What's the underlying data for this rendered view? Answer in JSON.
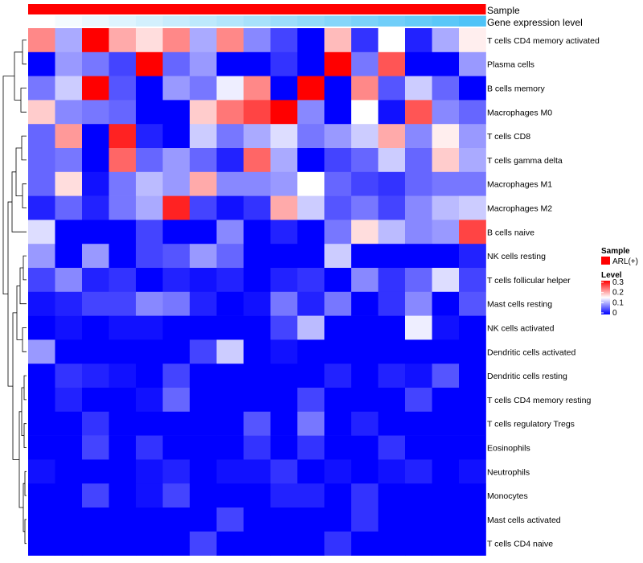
{
  "chart_data": {
    "type": "heatmap",
    "annotations": {
      "sample_label": "Sample",
      "expression_label": "Gene expression level",
      "sample_color": "#ff0000",
      "expression_gradient": [
        "#ffffff",
        "#4fc3f7"
      ]
    },
    "rows": [
      "T cells CD4 memory activated",
      "Plasma cells",
      "B cells memory",
      "Macrophages M0",
      "T cells CD8",
      "T cells gamma delta",
      "Macrophages M1",
      "Macrophages M2",
      "B cells naive",
      "NK cells resting",
      "T cells follicular helper",
      "Mast cells resting",
      "NK cells activated",
      "Dendritic cells activated",
      "Dendritic cells resting",
      "T cells CD4 memory resting",
      "T cells regulatory  Tregs",
      "Eosinophils",
      "Neutrophils",
      "Monocytes",
      "Mast cells activated",
      "T cells CD4 naive"
    ],
    "n_columns": 17,
    "values": [
      [
        0.22,
        0.1,
        0.3,
        0.2,
        0.17,
        0.22,
        0.1,
        0.22,
        0.08,
        0.04,
        0.0,
        0.19,
        0.03,
        0.15,
        0.02,
        0.1,
        0.16
      ],
      [
        0.0,
        0.09,
        0.07,
        0.04,
        0.3,
        0.06,
        0.09,
        0.0,
        0.0,
        0.03,
        0.0,
        0.3,
        0.07,
        0.25,
        0.0,
        0.0,
        0.09
      ],
      [
        0.07,
        0.12,
        0.3,
        0.05,
        0.0,
        0.09,
        0.07,
        0.14,
        0.22,
        0.0,
        0.3,
        0.0,
        0.22,
        0.05,
        0.12,
        0.06,
        0.0
      ],
      [
        0.18,
        0.08,
        0.07,
        0.06,
        0.0,
        0.0,
        0.18,
        0.23,
        0.26,
        0.3,
        0.08,
        0.0,
        0.15,
        0.01,
        0.25,
        0.08,
        0.06
      ],
      [
        0.06,
        0.21,
        0.0,
        0.28,
        0.02,
        0.0,
        0.12,
        0.07,
        0.1,
        0.13,
        0.07,
        0.09,
        0.12,
        0.2,
        0.08,
        0.16,
        0.09
      ],
      [
        0.06,
        0.07,
        0.0,
        0.24,
        0.06,
        0.09,
        0.06,
        0.02,
        0.24,
        0.1,
        0.0,
        0.04,
        0.06,
        0.12,
        0.06,
        0.18,
        0.1
      ],
      [
        0.06,
        0.17,
        0.01,
        0.07,
        0.11,
        0.09,
        0.2,
        0.08,
        0.08,
        0.09,
        0.15,
        0.06,
        0.04,
        0.03,
        0.06,
        0.07,
        0.07
      ],
      [
        0.02,
        0.06,
        0.02,
        0.07,
        0.1,
        0.28,
        0.04,
        0.01,
        0.03,
        0.2,
        0.12,
        0.05,
        0.07,
        0.04,
        0.08,
        0.11,
        0.12
      ],
      [
        0.13,
        0.0,
        0.0,
        0.0,
        0.04,
        0.0,
        0.0,
        0.08,
        0.0,
        0.02,
        0.0,
        0.07,
        0.17,
        0.11,
        0.08,
        0.09,
        0.26
      ],
      [
        0.09,
        0.0,
        0.09,
        0.0,
        0.04,
        0.05,
        0.09,
        0.06,
        0.0,
        0.0,
        0.0,
        0.12,
        0.0,
        0.0,
        0.0,
        0.0,
        0.02
      ],
      [
        0.04,
        0.08,
        0.02,
        0.03,
        0.0,
        0.02,
        0.01,
        0.02,
        0.0,
        0.02,
        0.03,
        0.0,
        0.08,
        0.03,
        0.06,
        0.13,
        0.04
      ],
      [
        0.01,
        0.02,
        0.04,
        0.04,
        0.08,
        0.07,
        0.02,
        0.0,
        0.01,
        0.07,
        0.02,
        0.07,
        0.0,
        0.03,
        0.08,
        0.0,
        0.05
      ],
      [
        0.0,
        0.01,
        0.0,
        0.01,
        0.01,
        0.0,
        0.0,
        0.0,
        0.0,
        0.04,
        0.11,
        0.0,
        0.0,
        0.0,
        0.14,
        0.01,
        0.0
      ],
      [
        0.09,
        0.0,
        0.0,
        0.0,
        0.0,
        0.0,
        0.04,
        0.12,
        0.0,
        0.01,
        0.0,
        0.0,
        0.0,
        0.0,
        0.0,
        0.0,
        0.0
      ],
      [
        0.0,
        0.03,
        0.02,
        0.01,
        0.0,
        0.04,
        0.0,
        0.0,
        0.0,
        0.0,
        0.0,
        0.02,
        0.0,
        0.02,
        0.01,
        0.05,
        0.0
      ],
      [
        0.0,
        0.02,
        0.0,
        0.0,
        0.01,
        0.06,
        0.0,
        0.0,
        0.0,
        0.0,
        0.04,
        0.0,
        0.0,
        0.0,
        0.04,
        0.0,
        0.0
      ],
      [
        0.0,
        0.0,
        0.03,
        0.0,
        0.0,
        0.0,
        0.0,
        0.0,
        0.05,
        0.0,
        0.07,
        0.0,
        0.02,
        0.0,
        0.0,
        0.0,
        0.0
      ],
      [
        0.0,
        0.0,
        0.04,
        0.0,
        0.03,
        0.0,
        0.0,
        0.0,
        0.03,
        0.0,
        0.03,
        0.0,
        0.0,
        0.03,
        0.0,
        0.0,
        0.0
      ],
      [
        0.01,
        0.0,
        0.0,
        0.0,
        0.01,
        0.02,
        0.0,
        0.01,
        0.01,
        0.03,
        0.0,
        0.01,
        0.0,
        0.01,
        0.02,
        0.0,
        0.01
      ],
      [
        0.0,
        0.0,
        0.04,
        0.0,
        0.01,
        0.04,
        0.0,
        0.0,
        0.0,
        0.02,
        0.02,
        0.0,
        0.03,
        0.0,
        0.0,
        0.0,
        0.0
      ],
      [
        0.0,
        0.0,
        0.0,
        0.0,
        0.0,
        0.0,
        0.0,
        0.04,
        0.0,
        0.0,
        0.0,
        0.0,
        0.03,
        0.0,
        0.0,
        0.0,
        0.0
      ],
      [
        0.0,
        0.0,
        0.0,
        0.0,
        0.0,
        0.0,
        0.04,
        0.0,
        0.0,
        0.0,
        0.0,
        0.03,
        0.0,
        0.0,
        0.0,
        0.0,
        0.0
      ]
    ],
    "color_scale": {
      "min": 0,
      "max": 0.3,
      "colors": [
        "#0000ff",
        "#ffffff",
        "#ff0000"
      ]
    },
    "legend": {
      "sample_title": "Sample",
      "sample_entry": "ARL(+)",
      "level_title": "Level",
      "level_ticks": [
        "0.3",
        "0.2",
        "0.1",
        "0"
      ]
    }
  }
}
